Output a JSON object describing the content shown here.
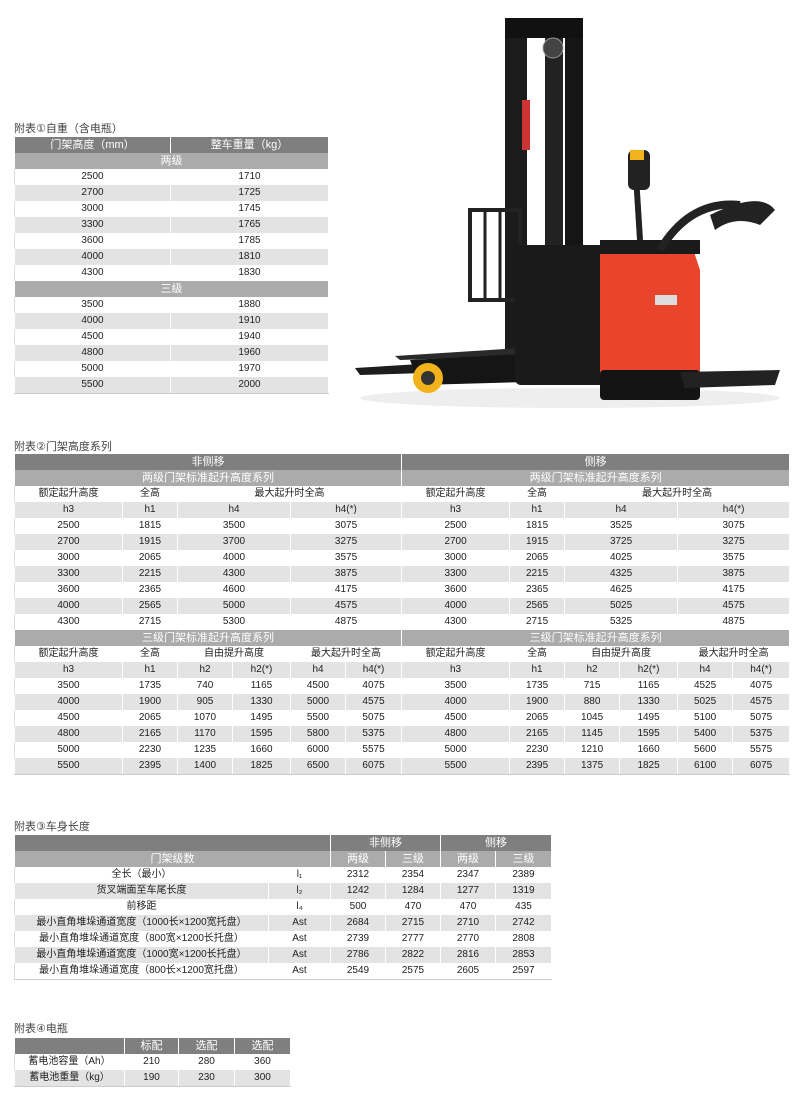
{
  "t1": {
    "caption": "附表①自重（含电瓶）",
    "headers": [
      "门架高度（mm）",
      "整车重量（kg）"
    ],
    "groups": [
      {
        "label": "两级",
        "rows": [
          [
            "2500",
            "1710"
          ],
          [
            "2700",
            "1725"
          ],
          [
            "3000",
            "1745"
          ],
          [
            "3300",
            "1765"
          ],
          [
            "3600",
            "1785"
          ],
          [
            "4000",
            "1810"
          ],
          [
            "4300",
            "1830"
          ]
        ]
      },
      {
        "label": "三级",
        "rows": [
          [
            "3500",
            "1880"
          ],
          [
            "4000",
            "1910"
          ],
          [
            "4500",
            "1940"
          ],
          [
            "4800",
            "1960"
          ],
          [
            "5000",
            "1970"
          ],
          [
            "5500",
            "2000"
          ]
        ]
      }
    ]
  },
  "t2": {
    "caption": "附表②门架高度系列",
    "sides": [
      "非侧移",
      "侧移"
    ],
    "two": {
      "title": "两级门架标准起升高度系列",
      "heads": [
        "额定起升高度",
        "全高",
        "最大起升时全高"
      ],
      "subs": [
        "h3",
        "h1",
        "h4",
        "h4(*)"
      ],
      "left": [
        [
          "2500",
          "1815",
          "3500",
          "3075"
        ],
        [
          "2700",
          "1915",
          "3700",
          "3275"
        ],
        [
          "3000",
          "2065",
          "4000",
          "3575"
        ],
        [
          "3300",
          "2215",
          "4300",
          "3875"
        ],
        [
          "3600",
          "2365",
          "4600",
          "4175"
        ],
        [
          "4000",
          "2565",
          "5000",
          "4575"
        ],
        [
          "4300",
          "2715",
          "5300",
          "4875"
        ]
      ],
      "right": [
        [
          "2500",
          "1815",
          "3525",
          "3075"
        ],
        [
          "2700",
          "1915",
          "3725",
          "3275"
        ],
        [
          "3000",
          "2065",
          "4025",
          "3575"
        ],
        [
          "3300",
          "2215",
          "4325",
          "3875"
        ],
        [
          "3600",
          "2365",
          "4625",
          "4175"
        ],
        [
          "4000",
          "2565",
          "5025",
          "4575"
        ],
        [
          "4300",
          "2715",
          "5325",
          "4875"
        ]
      ]
    },
    "three": {
      "title": "三级门架标准起升高度系列",
      "heads": [
        "额定起升高度",
        "全高",
        "自由提升高度",
        "最大起升时全高"
      ],
      "subs": [
        "h3",
        "h1",
        "h2",
        "h2(*)",
        "h4",
        "h4(*)"
      ],
      "left": [
        [
          "3500",
          "1735",
          "740",
          "1165",
          "4500",
          "4075"
        ],
        [
          "4000",
          "1900",
          "905",
          "1330",
          "5000",
          "4575"
        ],
        [
          "4500",
          "2065",
          "1070",
          "1495",
          "5500",
          "5075"
        ],
        [
          "4800",
          "2165",
          "1170",
          "1595",
          "5800",
          "5375"
        ],
        [
          "5000",
          "2230",
          "1235",
          "1660",
          "6000",
          "5575"
        ],
        [
          "5500",
          "2395",
          "1400",
          "1825",
          "6500",
          "6075"
        ]
      ],
      "right": [
        [
          "3500",
          "1735",
          "715",
          "1165",
          "4525",
          "4075"
        ],
        [
          "4000",
          "1900",
          "880",
          "1330",
          "5025",
          "4575"
        ],
        [
          "4500",
          "2065",
          "1045",
          "1495",
          "5100",
          "5075"
        ],
        [
          "4800",
          "2165",
          "1145",
          "1595",
          "5400",
          "5375"
        ],
        [
          "5000",
          "2230",
          "1210",
          "1660",
          "5600",
          "5575"
        ],
        [
          "5500",
          "2395",
          "1375",
          "1825",
          "6100",
          "6075"
        ]
      ]
    }
  },
  "t3": {
    "caption": "附表③车身长度",
    "groups": [
      "非侧移",
      "侧移"
    ],
    "stage_label": "门架级数",
    "stages": [
      "两级",
      "三级",
      "两级",
      "三级"
    ],
    "rows": [
      {
        "label": "全长（最小）",
        "sym": "l₁",
        "values": [
          "2312",
          "2354",
          "2347",
          "2389"
        ]
      },
      {
        "label": "货叉端面至车尾长度",
        "sym": "l₂",
        "values": [
          "1242",
          "1284",
          "1277",
          "1319"
        ]
      },
      {
        "label": "前移距",
        "sym": "l₄",
        "values": [
          "500",
          "470",
          "470",
          "435"
        ]
      },
      {
        "label": "最小直角堆垛通道宽度（1000长×1200宽托盘）",
        "sym": "Ast",
        "values": [
          "2684",
          "2715",
          "2710",
          "2742"
        ]
      },
      {
        "label": "最小直角堆垛通道宽度（800宽×1200长托盘）",
        "sym": "Ast",
        "values": [
          "2739",
          "2777",
          "2770",
          "2808"
        ]
      },
      {
        "label": "最小直角堆垛通道宽度（1000宽×1200长托盘）",
        "sym": "Ast",
        "values": [
          "2786",
          "2822",
          "2816",
          "2853"
        ]
      },
      {
        "label": "最小直角堆垛通道宽度（800长×1200宽托盘）",
        "sym": "Ast",
        "values": [
          "2549",
          "2575",
          "2605",
          "2597"
        ]
      }
    ]
  },
  "t4": {
    "caption": "附表④电瓶",
    "headers": [
      "",
      "标配",
      "选配",
      "选配"
    ],
    "rows": [
      {
        "label": "蓄电池容量（Ah）",
        "values": [
          "210",
          "280",
          "360"
        ]
      },
      {
        "label": "蓄电池重量（kg）",
        "values": [
          "190",
          "230",
          "300"
        ]
      }
    ]
  },
  "colors": {
    "header_dark": "#7f7f7f",
    "header_mid": "#ababab",
    "row_alt": "#e3e3e3",
    "truck_body": "#e8452c",
    "truck_frame": "#1a1a1a",
    "wheel": "#f2b21c"
  }
}
